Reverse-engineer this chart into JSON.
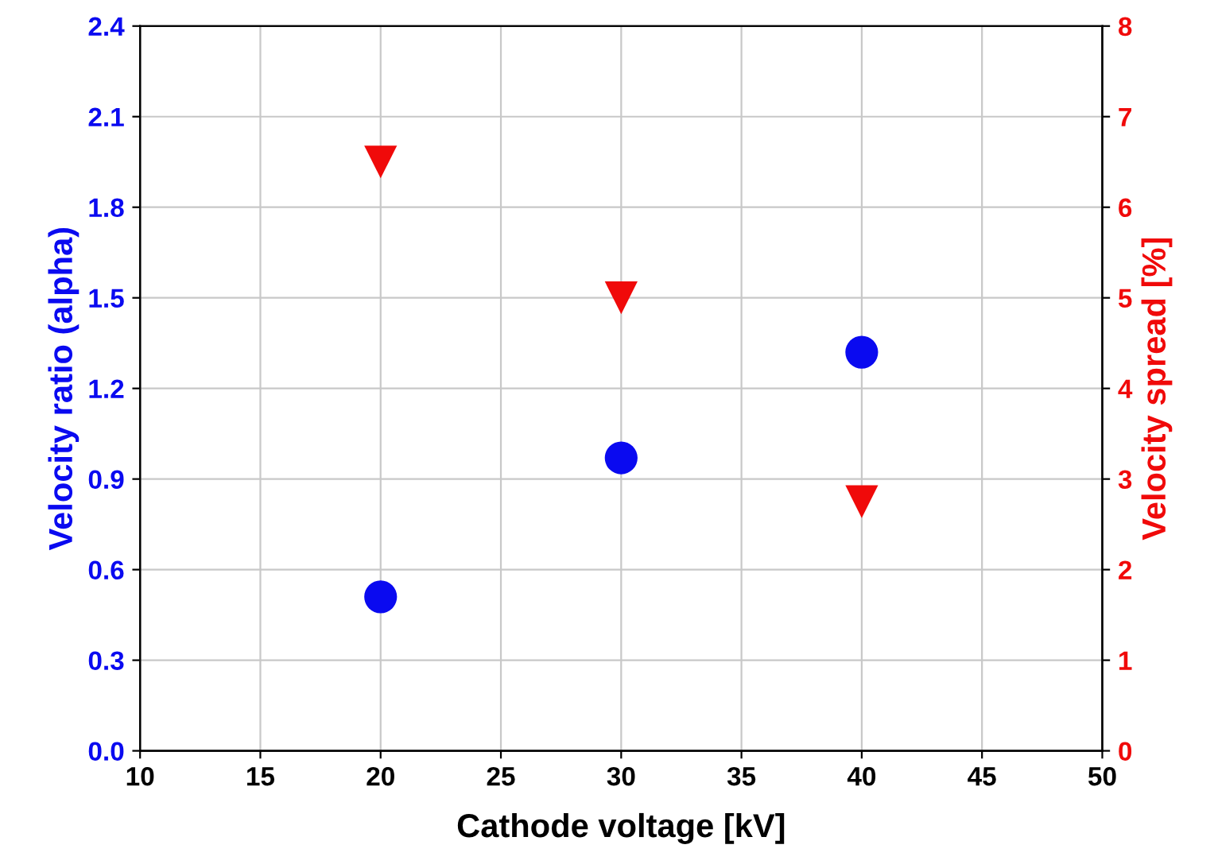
{
  "chart_data": {
    "type": "scatter",
    "xlabel": "Cathode voltage [kV]",
    "ylabel": "Velocity ratio (alpha)",
    "y2label": "Velocity spread [%]",
    "xlim": [
      10,
      50
    ],
    "xticks": [
      10,
      15,
      20,
      25,
      30,
      35,
      40,
      45,
      50
    ],
    "ylim": [
      0,
      2.4
    ],
    "yticks": [
      {
        "value": 0,
        "label": "0.0"
      },
      0.3,
      0.6,
      0.9,
      1.2,
      1.5,
      1.8,
      2.1,
      2.4
    ],
    "y2lim": [
      0,
      8
    ],
    "y2ticks": [
      0,
      1,
      2,
      3,
      4,
      5,
      6,
      7,
      8
    ],
    "grid": true,
    "series": [
      {
        "color": "#0a0af0",
        "marker": "circle",
        "x": [
          20,
          30,
          40
        ],
        "values": [
          0.51,
          0.97,
          1.32
        ]
      },
      {
        "color": "#f00a0a",
        "marker": "triangle",
        "axis": "y2",
        "x": [
          20,
          30,
          40
        ],
        "values": [
          6.5,
          5.0,
          2.75
        ]
      }
    ]
  }
}
